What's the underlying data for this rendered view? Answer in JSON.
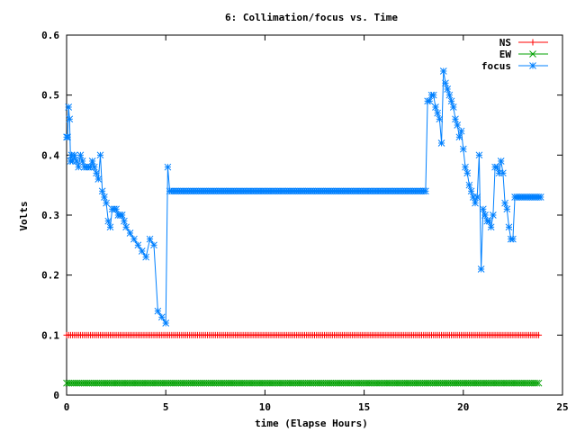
{
  "chart_data": {
    "type": "line",
    "title": "6: Collimation/focus vs. Time",
    "xlabel": "time (Elapse Hours)",
    "ylabel": "Volts",
    "xlim": [
      0,
      25
    ],
    "ylim": [
      0,
      0.6
    ],
    "xticks": [
      "0",
      "5",
      "10",
      "15",
      "20",
      "25"
    ],
    "yticks": [
      "0",
      "0.1",
      "0.2",
      "0.3",
      "0.4",
      "0.5",
      "0.6"
    ],
    "grid": false,
    "legend_position": "top-right",
    "series": [
      {
        "name": "NS",
        "color": "#ff0000",
        "marker": "plus",
        "x": [
          0,
          23.8
        ],
        "y": [
          0.1,
          0.1
        ],
        "constant": true
      },
      {
        "name": "EW",
        "color": "#00a000",
        "marker": "cross",
        "x": [
          0,
          23.8
        ],
        "y": [
          0.02,
          0.02
        ],
        "constant": true
      },
      {
        "name": "focus",
        "color": "#0080ff",
        "marker": "star",
        "x": [
          0.0,
          0.05,
          0.1,
          0.15,
          0.2,
          0.25,
          0.3,
          0.4,
          0.5,
          0.6,
          0.7,
          0.8,
          0.9,
          1.0,
          1.1,
          1.2,
          1.3,
          1.4,
          1.5,
          1.6,
          1.7,
          1.8,
          1.9,
          2.0,
          2.1,
          2.2,
          2.3,
          2.4,
          2.5,
          2.6,
          2.7,
          2.8,
          2.9,
          3.0,
          3.2,
          3.4,
          3.6,
          3.8,
          4.0,
          4.2,
          4.4,
          4.6,
          4.8,
          5.0,
          5.1,
          5.2,
          5.3,
          5.4,
          5.5,
          5.6,
          5.7,
          5.8,
          18.0,
          18.1,
          18.2,
          18.3,
          18.4,
          18.5,
          18.6,
          18.7,
          18.8,
          18.9,
          19.0,
          19.1,
          19.2,
          19.3,
          19.4,
          19.5,
          19.6,
          19.7,
          19.8,
          19.9,
          20.0,
          20.1,
          20.2,
          20.3,
          20.4,
          20.5,
          20.6,
          20.7,
          20.8,
          20.9,
          21.0,
          21.1,
          21.2,
          21.3,
          21.4,
          21.5,
          21.6,
          21.7,
          21.8,
          21.9,
          22.0,
          22.1,
          22.2,
          22.3,
          22.4,
          22.5,
          22.6,
          22.7,
          22.8,
          22.9,
          23.0,
          23.1,
          23.2,
          23.3,
          23.4,
          23.5,
          23.6,
          23.7,
          23.8,
          23.9
        ],
        "y": [
          0.43,
          0.43,
          0.48,
          0.46,
          0.39,
          0.4,
          0.39,
          0.4,
          0.39,
          0.38,
          0.4,
          0.39,
          0.38,
          0.38,
          0.38,
          0.38,
          0.39,
          0.38,
          0.37,
          0.36,
          0.4,
          0.34,
          0.33,
          0.32,
          0.29,
          0.28,
          0.31,
          0.31,
          0.31,
          0.3,
          0.3,
          0.3,
          0.29,
          0.28,
          0.27,
          0.26,
          0.25,
          0.24,
          0.23,
          0.26,
          0.25,
          0.14,
          0.13,
          0.12,
          0.38,
          0.34,
          0.34,
          0.34,
          0.34,
          0.34,
          0.34,
          0.34,
          0.34,
          0.34,
          0.49,
          0.49,
          0.5,
          0.5,
          0.48,
          0.47,
          0.46,
          0.42,
          0.54,
          0.52,
          0.51,
          0.5,
          0.49,
          0.48,
          0.46,
          0.45,
          0.43,
          0.44,
          0.41,
          0.38,
          0.37,
          0.35,
          0.34,
          0.33,
          0.32,
          0.33,
          0.4,
          0.21,
          0.31,
          0.3,
          0.29,
          0.29,
          0.28,
          0.3,
          0.38,
          0.38,
          0.37,
          0.39,
          0.37,
          0.32,
          0.31,
          0.28,
          0.26,
          0.26,
          0.33,
          0.33,
          0.33,
          0.33,
          0.33,
          0.33,
          0.33,
          0.33,
          0.33,
          0.33,
          0.33,
          0.33,
          0.33,
          0.33
        ]
      }
    ]
  }
}
